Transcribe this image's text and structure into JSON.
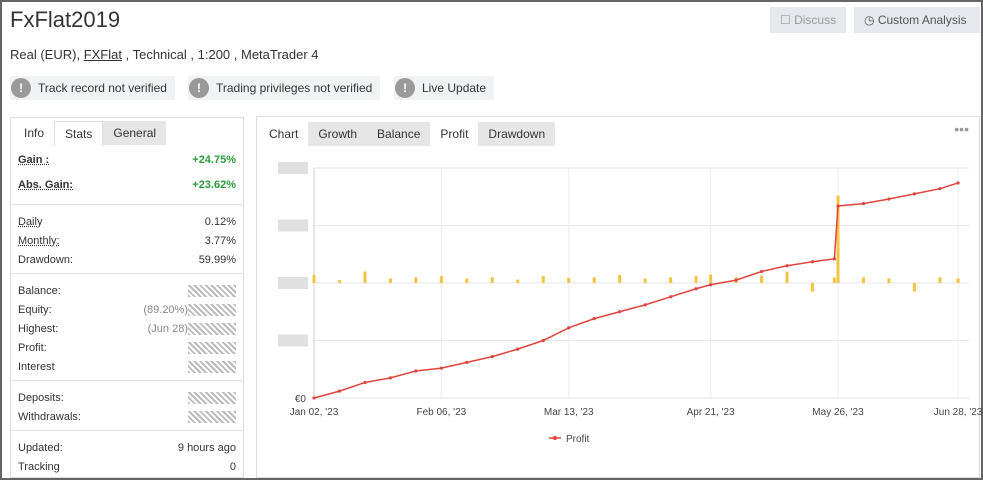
{
  "header": {
    "title": "FxFlat2019",
    "account": {
      "prefix": "Real (EUR), ",
      "broker": "FXFlat",
      "suffix": " , Technical , 1:200 , MetaTrader 4"
    },
    "buttons": [
      "Discuss",
      "Custom Analysis"
    ],
    "badges": [
      "Track record not verified",
      "Trading privileges not verified",
      "Live Update"
    ]
  },
  "stats_panel": {
    "tabs": [
      "Info",
      "Stats",
      "General"
    ],
    "groups": [
      [
        {
          "label": "Gain :",
          "value": "+24.75%"
        },
        {
          "label": "Abs. Gain:",
          "value": "+23.62%"
        }
      ],
      [
        {
          "label": "Daily",
          "value": "0.12%"
        },
        {
          "label": "Monthly:",
          "value": "3.77%"
        },
        {
          "label": "Drawdown:",
          "value": "59.99%"
        }
      ],
      [
        {
          "label": "Balance:"
        },
        {
          "label": "Equity:",
          "value": "(89.20%)"
        },
        {
          "label": "Highest:",
          "value": "(Jun 28)"
        },
        {
          "label": "Profit:"
        },
        {
          "label": "Interest"
        }
      ],
      [
        {
          "label": "Deposits:"
        },
        {
          "label": "Withdrawals:"
        }
      ],
      [
        {
          "label": "Updated:",
          "value": "9 hours ago"
        },
        {
          "label": "Tracking",
          "value": "0"
        }
      ]
    ]
  },
  "chart_panel": {
    "tabs": [
      "Chart",
      "Growth",
      "Balance",
      "Profit",
      "Drawdown"
    ]
  },
  "chart_data": {
    "type": "line",
    "x": [
      "2023-01-02",
      "2023-01-09",
      "2023-01-16",
      "2023-01-23",
      "2023-01-30",
      "2023-02-06",
      "2023-02-13",
      "2023-02-20",
      "2023-02-27",
      "2023-03-06",
      "2023-03-13",
      "2023-03-20",
      "2023-03-27",
      "2023-04-03",
      "2023-04-10",
      "2023-04-17",
      "2023-04-21",
      "2023-04-28",
      "2023-05-05",
      "2023-05-12",
      "2023-05-19",
      "2023-05-25",
      "2023-05-26",
      "2023-06-02",
      "2023-06-09",
      "2023-06-16",
      "2023-06-23",
      "2023-06-28"
    ],
    "series": [
      {
        "type": "bar",
        "axis": "y2",
        "color": "#f5c444",
        "values": [
          0.14,
          0.05,
          0.2,
          0.08,
          0.1,
          0.12,
          0.08,
          0.1,
          0.06,
          0.12,
          0.09,
          0.1,
          0.14,
          0.08,
          0.1,
          0.12,
          0.15,
          0.1,
          0.13,
          0.2,
          -0.15,
          0.1,
          1.52,
          0.1,
          0.08,
          -0.15,
          0.1,
          0.08
        ]
      },
      {
        "name": "Profit",
        "color": "#e0443e",
        "values": [
          0,
          0.12,
          0.27,
          0.35,
          0.47,
          0.52,
          0.62,
          0.72,
          0.85,
          1.0,
          1.22,
          1.38,
          1.5,
          1.62,
          1.76,
          1.9,
          1.97,
          2.05,
          2.2,
          2.3,
          2.37,
          2.42,
          3.34,
          3.38,
          3.46,
          3.55,
          3.64,
          3.74
        ]
      }
    ],
    "xlim": [
      "2023-01-02",
      "2023-07-01"
    ],
    "xticks": [
      {
        "value": "2023-01-02",
        "label": "Jan 02, '23"
      },
      {
        "value": "2023-02-06",
        "label": "Feb 06, '23"
      },
      {
        "value": "2023-03-13",
        "label": "Mar 13, '23"
      },
      {
        "value": "2023-04-21",
        "label": "Apr 21, '23"
      },
      {
        "value": "2023-05-26",
        "label": "May 26, '23"
      },
      {
        "value": "2023-06-28",
        "label": "Jun 28, '23"
      }
    ],
    "ylim": [
      0,
      4
    ],
    "yticks": [
      {
        "value": 0,
        "label": "€0"
      },
      {
        "value": 1,
        "label": null
      },
      {
        "value": 2,
        "label": null
      },
      {
        "value": 3,
        "label": null
      },
      {
        "value": 4,
        "label": null
      }
    ],
    "y2lim": [
      -2,
      2
    ],
    "grid": true
  }
}
